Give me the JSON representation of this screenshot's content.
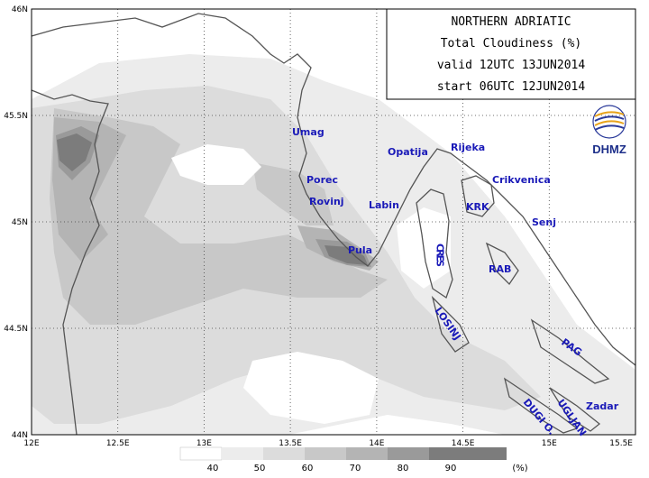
{
  "title_box": {
    "line1": "NORTHERN ADRIATIC",
    "line2": "Total Cloudiness (%)",
    "line3": "valid 12UTC 13JUN2014",
    "line4": "start 06UTC 12JUN2014"
  },
  "logo": {
    "text": "DHMZ"
  },
  "axes": {
    "lat_labels": [
      "46N",
      "45.5N",
      "45N",
      "44.5N",
      "44N"
    ],
    "lon_labels": [
      "12E",
      "12.5E",
      "13E",
      "13.5E",
      "14E",
      "14.5E",
      "15E",
      "15.5E"
    ]
  },
  "places": [
    {
      "name": "Umag"
    },
    {
      "name": "Porec"
    },
    {
      "name": "Rovinj"
    },
    {
      "name": "Pula"
    },
    {
      "name": "Labin"
    },
    {
      "name": "Opatija"
    },
    {
      "name": "Rijeka"
    },
    {
      "name": "Crikvenica"
    },
    {
      "name": "KRK"
    },
    {
      "name": "Senj"
    },
    {
      "name": "CRES"
    },
    {
      "name": "RAB"
    },
    {
      "name": "LOSINJ"
    },
    {
      "name": "PAG"
    },
    {
      "name": "Zadar"
    },
    {
      "name": "UGLJAN"
    },
    {
      "name": "DUGI O."
    }
  ],
  "legend": {
    "levels": [
      "40",
      "50",
      "60",
      "70",
      "80",
      "90"
    ],
    "unit": "(%)",
    "colors": [
      "#ffffff",
      "#ececec",
      "#dcdcdc",
      "#c8c8c8",
      "#b4b4b4",
      "#9a9a9a",
      "#7c7c7c"
    ]
  }
}
